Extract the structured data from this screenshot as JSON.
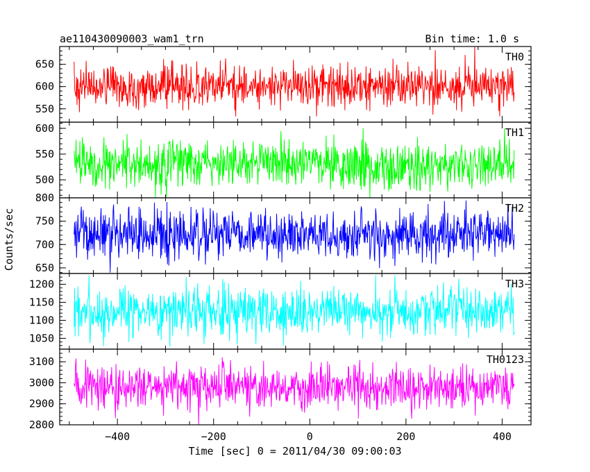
{
  "header": {
    "title": "ae110430090003_wam1_trn",
    "bin_time": "Bin time: 1.0 s"
  },
  "chart_data": {
    "type": "line",
    "title": "ae110430090003_wam1_trn",
    "annotation": "Bin time: 1.0 s",
    "xlabel": "Time [sec] 0 = 2011/04/30 09:00:03",
    "ylabel": "Counts/sec",
    "xlim": [
      -520,
      460
    ],
    "x_range": [
      -490,
      425
    ],
    "x_step": 1,
    "x_ticks": [
      -400,
      -200,
      0,
      200,
      400
    ],
    "x_tick_labels": [
      "−400",
      "−200",
      "0",
      "200",
      "400"
    ],
    "grid": false,
    "panels": [
      {
        "name": "TH0",
        "color": "#ff0000",
        "ylim": [
          520,
          690
        ],
        "y_ticks": [
          550,
          600,
          650
        ],
        "y_tick_labels": [
          "550",
          "600",
          "650"
        ],
        "mean": 602,
        "scatter": 24,
        "range": [
          533,
          690
        ]
      },
      {
        "name": "TH1",
        "color": "#00ff00",
        "ylim": [
          465,
          612
        ],
        "y_ticks": [
          500,
          550,
          600
        ],
        "y_tick_labels": [
          "500",
          "550",
          "600"
        ],
        "mean": 530,
        "scatter": 23,
        "range": [
          465,
          600
        ]
      },
      {
        "name": "TH2",
        "color": "#0000ff",
        "ylim": [
          638,
          800
        ],
        "y_ticks": [
          650,
          700,
          750,
          800
        ],
        "y_tick_labels": [
          "650",
          "700",
          "750",
          "800"
        ],
        "mean": 722,
        "scatter": 27,
        "range": [
          640,
          800
        ]
      },
      {
        "name": "TH3",
        "color": "#00ffff",
        "ylim": [
          1020,
          1230
        ],
        "y_ticks": [
          1050,
          1100,
          1150,
          1200
        ],
        "y_tick_labels": [
          "1050",
          "1100",
          "1150",
          "1200"
        ],
        "mean": 1125,
        "scatter": 33,
        "range": [
          1020,
          1225
        ]
      },
      {
        "name": "TH0123",
        "color": "#ff00ff",
        "ylim": [
          2800,
          3160
        ],
        "y_ticks": [
          2800,
          2900,
          3000,
          3100
        ],
        "y_tick_labels": [
          "2800",
          "2900",
          "3000",
          "3100"
        ],
        "mean": 2980,
        "scatter": 55,
        "range": [
          2800,
          3150
        ]
      }
    ]
  }
}
